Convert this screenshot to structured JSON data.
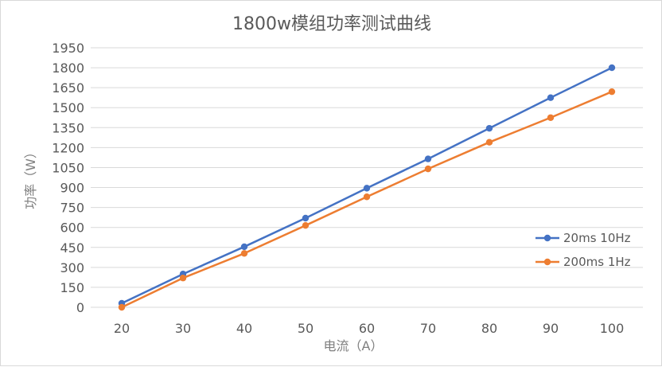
{
  "chart_data": {
    "type": "line",
    "title": "1800w模组功率测试曲线",
    "xlabel": "电流（A）",
    "ylabel": "功率（W）",
    "x": [
      20,
      30,
      40,
      50,
      60,
      70,
      80,
      90,
      100
    ],
    "ylim": [
      0,
      1950
    ],
    "yticks": [
      0,
      150,
      300,
      450,
      600,
      750,
      900,
      1050,
      1200,
      1350,
      1500,
      1650,
      1800,
      1950
    ],
    "grid": "horizontal",
    "legend": "right",
    "series": [
      {
        "name": "20ms 10Hz",
        "color": "#4472c4",
        "values": [
          30,
          250,
          455,
          670,
          895,
          1115,
          1345,
          1575,
          1800
        ]
      },
      {
        "name": "200ms 1Hz",
        "color": "#ed7d31",
        "values": [
          0,
          220,
          405,
          615,
          830,
          1040,
          1240,
          1425,
          1620
        ]
      }
    ]
  }
}
